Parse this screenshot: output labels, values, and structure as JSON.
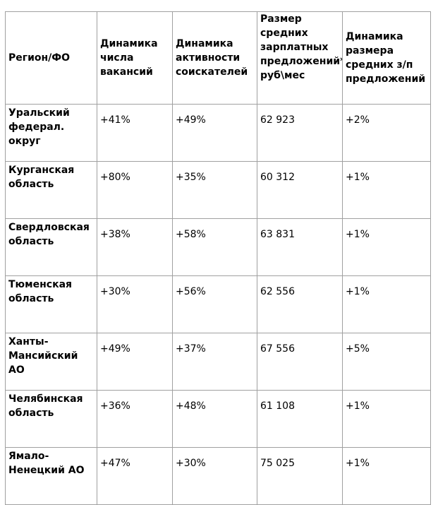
{
  "table": {
    "headers": [
      "Регион/ФО",
      "Динамика числа вакансий",
      "Динамика активности соискателей",
      "Размер средних зарплатных предложений* руб\\мес",
      "Динамика размера средних з/п предложений"
    ],
    "rows": [
      [
        "Уральский федерал. округ",
        "+41%",
        "+49%",
        "62 923",
        "+2%"
      ],
      [
        "Курганская область",
        "+80%",
        "+35%",
        "60 312",
        "+1%"
      ],
      [
        "Свердловская область",
        "+38%",
        "+58%",
        "63 831",
        "+1%"
      ],
      [
        "Тюменская область",
        "+30%",
        "+56%",
        "62 556",
        "+1%"
      ],
      [
        "Ханты-Мансийский АО",
        "+49%",
        "+37%",
        "67 556",
        "+5%"
      ],
      [
        "Челябинская область",
        "+36%",
        "+48%",
        "61 108",
        "+1%"
      ],
      [
        "Ямало-Ненецкий АО",
        "+47%",
        "+30%",
        "75 025",
        "+1%"
      ]
    ]
  }
}
